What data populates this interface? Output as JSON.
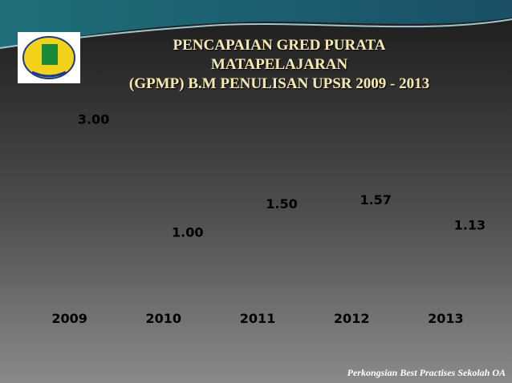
{
  "chart_data": {
    "type": "label-line",
    "title": [
      "PENCAPAIAN GRED PURATA",
      "MATAPELAJARAN",
      "(GPMP) B.M PENULISAN UPSR 2009 - 2013"
    ],
    "categories": [
      "2009",
      "2010",
      "2011",
      "2012",
      "2013"
    ],
    "values": [
      3.0,
      1.0,
      1.5,
      1.57,
      1.13
    ],
    "value_labels": [
      "3.00",
      "1.00",
      "1.50",
      "1.57",
      "1.13"
    ],
    "ylim": [
      0,
      3.5
    ]
  },
  "footer": "Perkongsian Best Practises Sekolah OA"
}
